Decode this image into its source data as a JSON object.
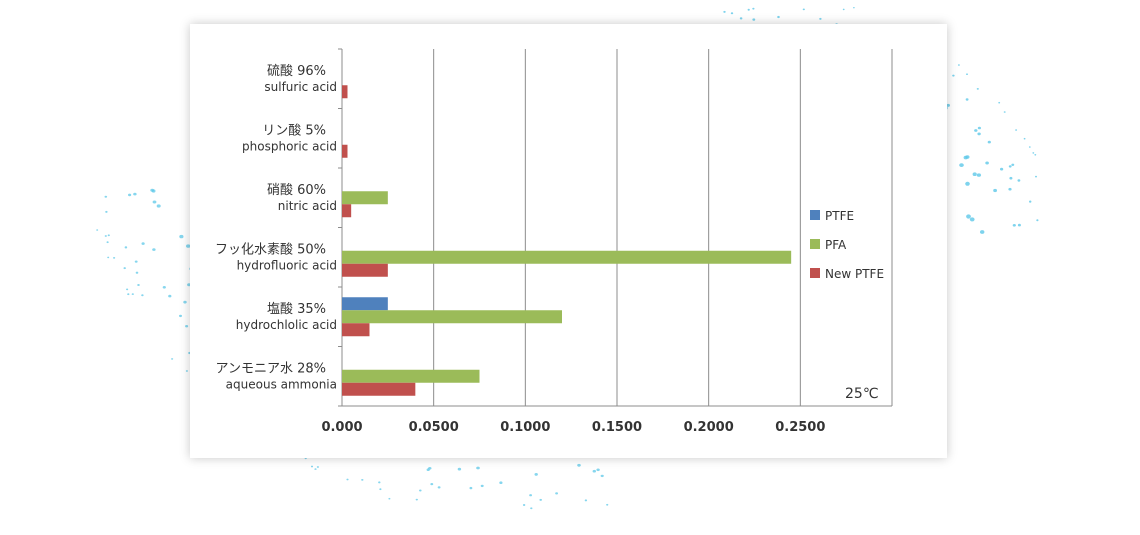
{
  "chart_data": {
    "type": "bar",
    "orientation": "horizontal",
    "categories": [
      {
        "jp": "硫酸 96%",
        "en": "sulfuric acid"
      },
      {
        "jp": "リン酸 5%",
        "en": "phosphoric acid"
      },
      {
        "jp": "硝酸 60%",
        "en": "nitric acid"
      },
      {
        "jp": "フッ化水素酸 50%",
        "en": "hydrofluoric acid"
      },
      {
        "jp": "塩酸 35%",
        "en": "hydrochlolic acid"
      },
      {
        "jp": "アンモニア水 28%",
        "en": "aqueous ammonia"
      }
    ],
    "series": [
      {
        "name": "PTFE",
        "color": "#4f81bd",
        "values": [
          0,
          0,
          0,
          0,
          0.025,
          0
        ]
      },
      {
        "name": "PFA",
        "color": "#9bbb59",
        "values": [
          0,
          0,
          0.025,
          0.245,
          0.12,
          0.075
        ]
      },
      {
        "name": "New PTFE",
        "color": "#c0504d",
        "values": [
          0.003,
          0.003,
          0.005,
          0.025,
          0.015,
          0.04
        ]
      }
    ],
    "xlim": [
      0,
      0.3
    ],
    "xticks": [
      0,
      0.05,
      0.1,
      0.15,
      0.2,
      0.25
    ],
    "xtick_labels": [
      "0.000",
      "0.0500",
      "0.1000",
      "0.1500",
      "0.2000",
      "0.2500"
    ],
    "grid": "vertical",
    "legend": "right",
    "annotation": "25℃"
  },
  "background": {
    "dot_color": "#5ec8e8"
  }
}
